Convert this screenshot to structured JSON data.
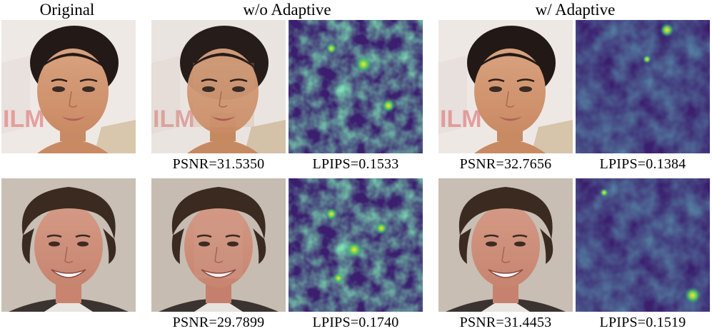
{
  "headers": {
    "original": "Original",
    "without_adaptive": "w/o Adaptive",
    "with_adaptive": "w/ Adaptive"
  },
  "rows": [
    {
      "subject": "woman",
      "wo_psnr": "PSNR=31.5350",
      "wo_lpips": "LPIPS=0.1533",
      "w_psnr": "PSNR=32.7656",
      "w_lpips": "LPIPS=0.1384"
    },
    {
      "subject": "man",
      "wo_psnr": "PSNR=29.7899",
      "wo_lpips": "LPIPS=0.1740",
      "w_psnr": "PSNR=31.4453",
      "w_lpips": "LPIPS=0.1519"
    }
  ],
  "colors": {
    "heatmap_low": "#3b1e6e",
    "heatmap_mid": "#21918c",
    "heatmap_high": "#fde725"
  }
}
